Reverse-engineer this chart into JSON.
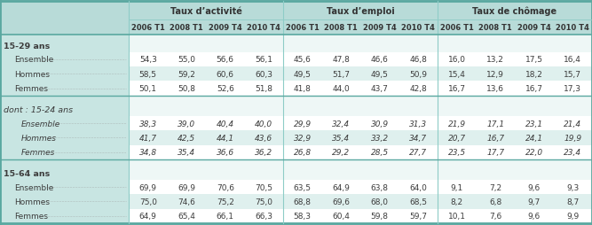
{
  "group_headers": [
    "Taux d’activité",
    "Taux d’emploi",
    "Taux de chômage"
  ],
  "col_years": [
    "2006 T1",
    "2008 T1",
    "2009 T4",
    "2010 T4",
    "2006 T1",
    "2008 T1",
    "2009 T4",
    "2010 T4",
    "2006 T1",
    "2008 T1",
    "2009 T4",
    "2010 T4"
  ],
  "row_groups": [
    {
      "label": "15-29 ans",
      "bold": true,
      "italic": false,
      "rows": [
        {
          "label": "Ensemble",
          "italic": false,
          "values": [
            54.3,
            55.0,
            56.6,
            56.1,
            45.6,
            47.8,
            46.6,
            46.8,
            16.0,
            13.2,
            17.5,
            16.4
          ]
        },
        {
          "label": "Hommes",
          "italic": false,
          "values": [
            58.5,
            59.2,
            60.6,
            60.3,
            49.5,
            51.7,
            49.5,
            50.9,
            15.4,
            12.9,
            18.2,
            15.7
          ]
        },
        {
          "label": "Femmes",
          "italic": false,
          "values": [
            50.1,
            50.8,
            52.6,
            51.8,
            41.8,
            44.0,
            43.7,
            42.8,
            16.7,
            13.6,
            16.7,
            17.3
          ]
        }
      ]
    },
    {
      "label": "dont : 15-24 ans",
      "bold": false,
      "italic": true,
      "rows": [
        {
          "label": "Ensemble",
          "italic": true,
          "values": [
            38.3,
            39.0,
            40.4,
            40.0,
            29.9,
            32.4,
            30.9,
            31.3,
            21.9,
            17.1,
            23.1,
            21.4
          ]
        },
        {
          "label": "Hommes",
          "italic": true,
          "values": [
            41.7,
            42.5,
            44.1,
            43.6,
            32.9,
            35.4,
            33.2,
            34.7,
            20.7,
            16.7,
            24.1,
            19.9
          ]
        },
        {
          "label": "Femmes",
          "italic": true,
          "values": [
            34.8,
            35.4,
            36.6,
            36.2,
            26.8,
            29.2,
            28.5,
            27.7,
            23.5,
            17.7,
            22.0,
            23.4
          ]
        }
      ]
    },
    {
      "label": "15-64 ans",
      "bold": true,
      "italic": false,
      "rows": [
        {
          "label": "Ensemble",
          "italic": false,
          "values": [
            69.9,
            69.9,
            70.6,
            70.5,
            63.5,
            64.9,
            63.8,
            64.0,
            9.1,
            7.2,
            9.6,
            9.3
          ]
        },
        {
          "label": "Hommes",
          "italic": false,
          "values": [
            75.0,
            74.6,
            75.2,
            75.0,
            68.8,
            69.6,
            68.0,
            68.5,
            8.2,
            6.8,
            9.7,
            8.7
          ]
        },
        {
          "label": "Femmes",
          "italic": false,
          "values": [
            64.9,
            65.4,
            66.1,
            66.3,
            58.3,
            60.4,
            59.8,
            59.7,
            10.1,
            7.6,
            9.6,
            9.9
          ]
        }
      ]
    }
  ],
  "bg_outer": "#a8d5d1",
  "bg_header": "#b8dbd8",
  "bg_subheader": "#c8e5e2",
  "bg_left_panel": "#c8e5e2",
  "bg_data_white": "#ffffff",
  "bg_data_teal": "#dff0ee",
  "bg_group_label_white": "#eef7f6",
  "bg_group_label_teal": "#dff0ee",
  "border_dark": "#5aa8a0",
  "border_light": "#8eccc7",
  "text_dark": "#3c3c3c",
  "text_header": "#333333"
}
